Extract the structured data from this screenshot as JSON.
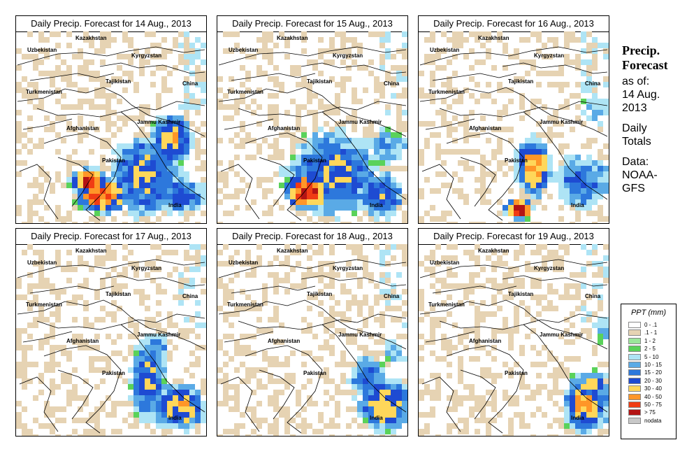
{
  "panels": [
    {
      "title": "Daily Precip. Forecast for  14 Aug., 2013",
      "regime": "heavy"
    },
    {
      "title": "Daily Precip. Forecast for  15 Aug., 2013",
      "regime": "central"
    },
    {
      "title": "Daily Precip. Forecast for  16 Aug., 2013",
      "regime": "east"
    },
    {
      "title": "Daily Precip. Forecast for  17 Aug., 2013",
      "regime": "band"
    },
    {
      "title": "Daily Precip. Forecast for  18 Aug., 2013",
      "regime": "southeast"
    },
    {
      "title": "Daily Precip. Forecast for  19 Aug., 2013",
      "regime": "southeast-narrow"
    }
  ],
  "place_labels": [
    "Kazakhstan",
    "Uzbekistan",
    "Kyrgyzstan",
    "Tajikistan",
    "Turkmenistan",
    "China",
    "Afghanistan",
    "Jammu Kashmir",
    "Pakistan",
    "India"
  ],
  "sidebar": {
    "title_line1": "Precip.",
    "title_line2": "Forecast",
    "asof_line1": "as of:",
    "asof_line2": "14 Aug.",
    "asof_line3": "2013",
    "totals_line1": "Daily",
    "totals_line2": "Totals",
    "data_line1": "Data:",
    "data_line2": "NOAA-",
    "data_line3": "GFS"
  },
  "legend": {
    "title": "PPT (mm)",
    "items": [
      {
        "label": "0 - .1",
        "color": "#ffffff"
      },
      {
        "label": ".1 - 1",
        "color": "#e6d3b3"
      },
      {
        "label": "1 - 2",
        "color": "#9be69b"
      },
      {
        "label": "2 - 5",
        "color": "#5ad25a"
      },
      {
        "label": "5 - 10",
        "color": "#aee4f5"
      },
      {
        "label": "10 - 15",
        "color": "#5aaae6"
      },
      {
        "label": "15 - 20",
        "color": "#2d78dc"
      },
      {
        "label": "20 - 30",
        "color": "#1e4bd2"
      },
      {
        "label": "30 - 40",
        "color": "#ffd75a"
      },
      {
        "label": "40 - 50",
        "color": "#ff9628"
      },
      {
        "label": "50 - 75",
        "color": "#f03c14"
      },
      {
        "label": "> 75",
        "color": "#b41414"
      },
      {
        "label": "nodata",
        "color": "#c8c8c8"
      }
    ]
  }
}
